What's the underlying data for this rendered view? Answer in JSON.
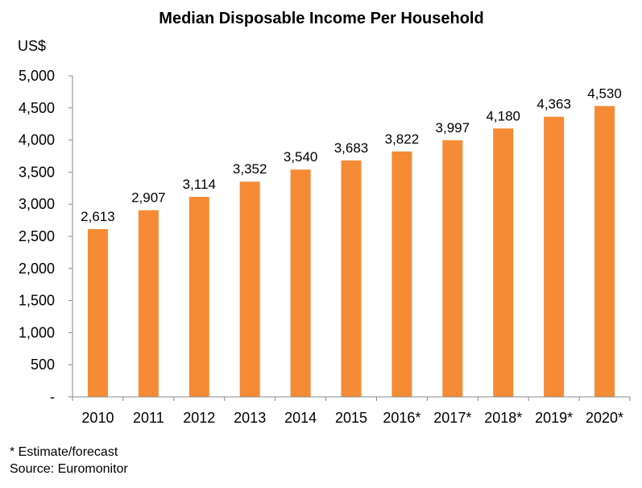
{
  "chart_data": {
    "type": "bar",
    "title": "Median Disposable Income Per Household",
    "ylabel": "US$",
    "xlabel": "",
    "categories": [
      "2010",
      "2011",
      "2012",
      "2013",
      "2014",
      "2015",
      "2016*",
      "2017*",
      "2018*",
      "2019*",
      "2020*"
    ],
    "values": [
      2613,
      2907,
      3114,
      3352,
      3540,
      3683,
      3822,
      3997,
      4180,
      4363,
      4530
    ],
    "value_labels": [
      "2,613",
      "2,907",
      "3,114",
      "3,352",
      "3,540",
      "3,683",
      "3,822",
      "3,997",
      "4,180",
      "4,363",
      "4,530"
    ],
    "ylim": [
      0,
      5000
    ],
    "yticks": [
      0,
      500,
      1000,
      1500,
      2000,
      2500,
      3000,
      3500,
      4000,
      4500,
      5000
    ],
    "ytick_labels": [
      "-",
      "500",
      "1,000",
      "1,500",
      "2,000",
      "2,500",
      "3,000",
      "3,500",
      "4,000",
      "4,500",
      "5,000"
    ],
    "bar_color": "#F58B34",
    "grid": false,
    "legend": "none"
  },
  "notes": {
    "footnote": "* Estimate/forecast",
    "source": "Source: Euromonitor"
  }
}
